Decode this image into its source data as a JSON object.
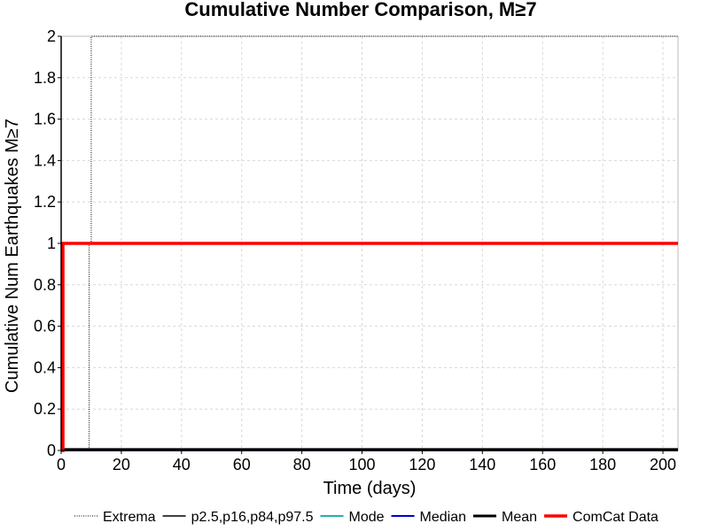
{
  "chart_data": {
    "type": "line",
    "title": "Cumulative Number Comparison, M≥7",
    "xlabel": "Time (days)",
    "ylabel": "Cumulative Num Earthquakes M≥7",
    "xlim": [
      0,
      205
    ],
    "ylim": [
      0,
      2
    ],
    "x_ticks": [
      0,
      20,
      40,
      60,
      80,
      100,
      120,
      140,
      160,
      180,
      200
    ],
    "y_ticks": [
      0,
      0.2,
      0.4,
      0.6,
      0.8,
      1,
      1.2,
      1.4,
      1.6,
      1.8,
      2
    ],
    "y_tick_labels": [
      "0",
      "0.2",
      "0.4",
      "0.6",
      "0.8",
      "1",
      "1.2",
      "1.4",
      "1.6",
      "1.8",
      "2"
    ],
    "grid": true,
    "legend_position": "bottom",
    "series": [
      {
        "name": "Extrema",
        "color": "#000000",
        "style": "dotted",
        "width": 1,
        "x": [
          0,
          9.3,
          9.3,
          10,
          10,
          205
        ],
        "y": [
          0,
          0,
          1,
          1,
          2,
          2
        ]
      },
      {
        "name": "p2.5,p16,p84,p97.5",
        "color": "#000000",
        "style": "solid",
        "width": 1.5,
        "x": [
          0,
          205
        ],
        "y": [
          0,
          0
        ]
      },
      {
        "name": "Mode",
        "color": "#20b2aa",
        "style": "solid",
        "width": 2,
        "x": [
          0,
          205
        ],
        "y": [
          0,
          0
        ]
      },
      {
        "name": "Median",
        "color": "#0000cc",
        "style": "solid",
        "width": 2,
        "x": [
          0,
          205
        ],
        "y": [
          0,
          0
        ]
      },
      {
        "name": "Mean",
        "color": "#000000",
        "style": "solid",
        "width": 3,
        "x": [
          0,
          205
        ],
        "y": [
          0.005,
          0.005
        ]
      },
      {
        "name": "ComCat Data",
        "color": "#ff0000",
        "style": "solid",
        "width": 3.5,
        "x": [
          0,
          0.6,
          0.6,
          205
        ],
        "y": [
          0,
          0,
          1,
          1
        ]
      }
    ]
  }
}
